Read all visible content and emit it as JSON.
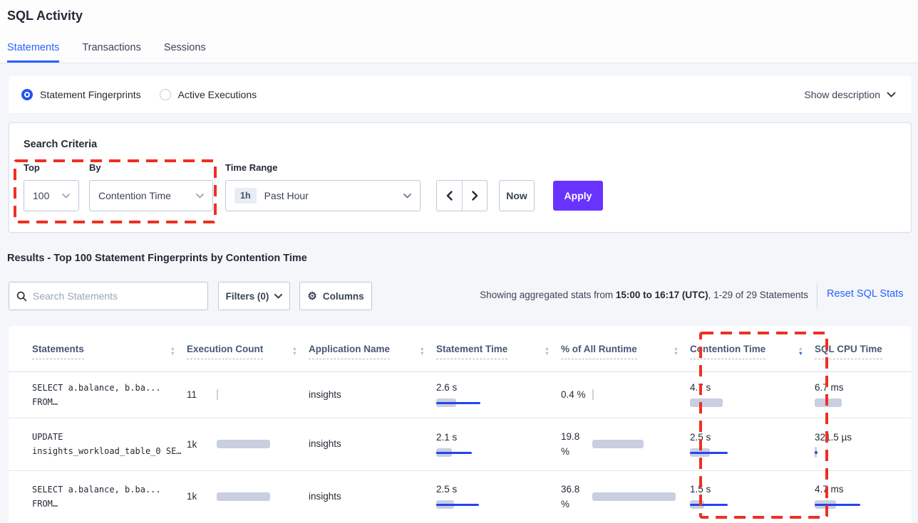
{
  "title": "SQL Activity",
  "tabs": [
    {
      "label": "Statements",
      "active": true
    },
    {
      "label": "Transactions",
      "active": false
    },
    {
      "label": "Sessions",
      "active": false
    }
  ],
  "view_mode": {
    "options": [
      {
        "label": "Statement Fingerprints",
        "selected": true
      },
      {
        "label": "Active Executions",
        "selected": false
      }
    ],
    "show_description_label": "Show description"
  },
  "search_criteria": {
    "title": "Search Criteria",
    "top_label": "Top",
    "top_value": "100",
    "by_label": "By",
    "by_value": "Contention Time",
    "time_range_label": "Time Range",
    "time_range_badge": "1h",
    "time_range_value": "Past Hour",
    "now_label": "Now",
    "apply_label": "Apply"
  },
  "results": {
    "heading": "Results - Top 100 Statement Fingerprints by Contention Time",
    "search_placeholder": "Search Statements",
    "filters_label": "Filters (0)",
    "columns_label": "Columns",
    "stats_prefix": "Showing aggregated stats from ",
    "stats_range": "15:00 to 16:17 (UTC)",
    "stats_suffix": ", 1-29 of 29 Statements",
    "reset_label": "Reset SQL Stats"
  },
  "table": {
    "headers": [
      {
        "label": "Statements",
        "sort": "none"
      },
      {
        "label": "Execution Count",
        "sort": "none"
      },
      {
        "label": "Application Name",
        "sort": "none"
      },
      {
        "label": "Statement Time",
        "sort": "none"
      },
      {
        "label": "% of All Runtime",
        "sort": "none"
      },
      {
        "label": "Contention Time",
        "sort": "desc"
      },
      {
        "label": "SQL CPU Time",
        "sort": "none"
      }
    ],
    "rows": [
      {
        "statement_line1": "SELECT a.balance, b.ba...",
        "statement_line2": "FROM…",
        "execution_count": "11",
        "execution_bar": {
          "gray": 2,
          "blue": 0,
          "tick": true
        },
        "application": "insights",
        "statement_time": "2.6 s",
        "statement_time_bar": {
          "gray": 28,
          "blue": 62
        },
        "runtime_pct": "0.4 %",
        "runtime_bar": {
          "gray": 2,
          "blue": 0,
          "tick": true
        },
        "contention_time": "4.7 s",
        "contention_bar": {
          "gray": 46,
          "blue": 0
        },
        "cpu_time": "6.7 ms",
        "cpu_bar": {
          "gray": 38,
          "blue": 0
        }
      },
      {
        "statement_line1": "UPDATE",
        "statement_line2": "insights_workload_table_0 SE…",
        "execution_count": "1k",
        "execution_bar": {
          "gray": 75,
          "blue": 0
        },
        "application": "insights",
        "statement_time": "2.1 s",
        "statement_time_bar": {
          "gray": 22,
          "blue": 50
        },
        "runtime_pct": "19.8 %",
        "runtime_bar": {
          "gray": 72,
          "blue": 0
        },
        "contention_time": "2.5 s",
        "contention_bar": {
          "gray": 28,
          "blue": 53
        },
        "cpu_time": "321.5 µs",
        "cpu_bar": {
          "gray": 3,
          "blue": 4,
          "tick": true
        }
      },
      {
        "statement_line1": "SELECT a.balance, b.ba...",
        "statement_line2": "FROM…",
        "execution_count": "1k",
        "execution_bar": {
          "gray": 75,
          "blue": 0
        },
        "application": "insights",
        "statement_time": "2.5 s",
        "statement_time_bar": {
          "gray": 25,
          "blue": 60
        },
        "runtime_pct": "36.8 %",
        "runtime_bar": {
          "gray": 117,
          "blue": 0
        },
        "contention_time": "1.5 s",
        "contention_bar": {
          "gray": 20,
          "blue": 53
        },
        "cpu_time": "4.7 ms",
        "cpu_bar": {
          "gray": 30,
          "blue": 64
        }
      }
    ]
  },
  "colors": {
    "accent_blue": "#2962ff",
    "bar_gray": "#c9cfe0",
    "bar_blue": "#2443ee",
    "apply_purple": "#6933ff",
    "annotation_red": "#ee3023"
  }
}
